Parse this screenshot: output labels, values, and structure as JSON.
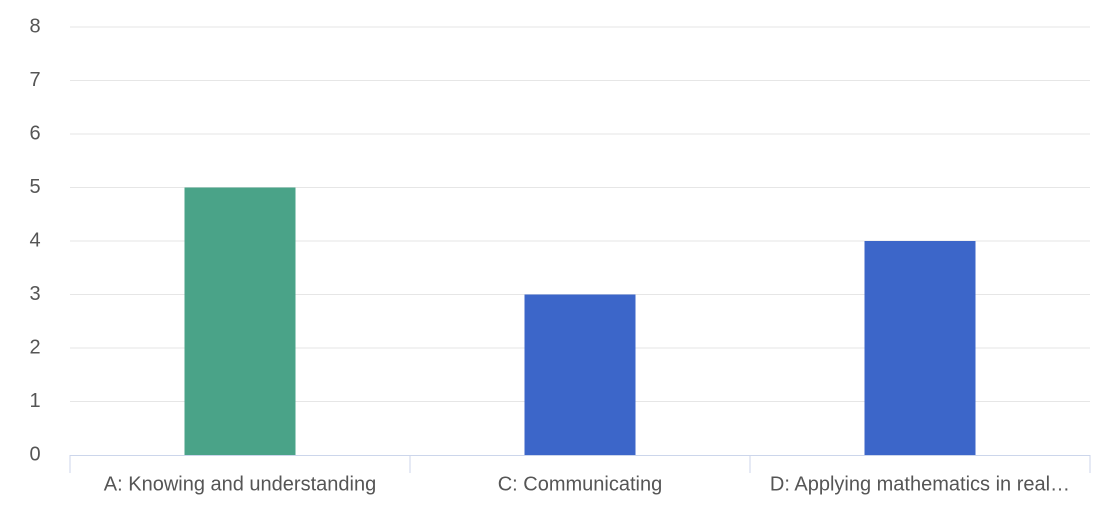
{
  "chart_data": {
    "type": "bar",
    "categories": [
      "A: Knowing and understanding",
      "C: Communicating",
      "D: Applying mathematics in real…"
    ],
    "values": [
      5,
      3,
      4
    ],
    "colors": [
      "#4aa388",
      "#3c66c9",
      "#3c66c9"
    ],
    "ylim": [
      0,
      8
    ],
    "yticks": [
      0,
      1,
      2,
      3,
      4,
      5,
      6,
      7,
      8
    ],
    "grid": true
  }
}
